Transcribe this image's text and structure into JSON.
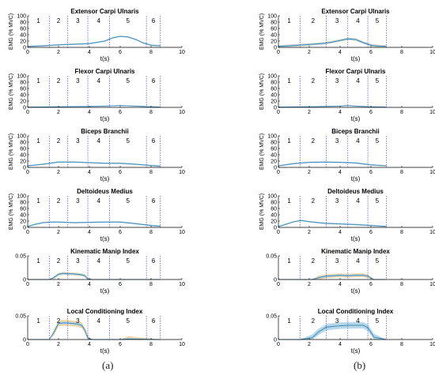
{
  "captions": [
    "(a)",
    "(b)"
  ],
  "colors": {
    "line_blue": "#3a8fc4",
    "band_blue": "#a9d6f2",
    "band_orange": "#f7c98c",
    "phase_line": "#5b5bd6",
    "axis": "#000000"
  },
  "chart_data": [
    {
      "type": "line",
      "panel": "a",
      "title": "Extensor Carpi Ulnaris",
      "ylabel": "EMG (% MVC)",
      "xlabel": "t(s)",
      "xlim": [
        0,
        10
      ],
      "ylim": [
        0,
        100
      ],
      "xticks": [
        "0",
        "2",
        "4",
        "6",
        "8",
        "10"
      ],
      "yticks": [
        "0",
        "20",
        "40",
        "60",
        "80",
        "100"
      ],
      "phase_boundaries": [
        1.4,
        2.6,
        3.9,
        5.3,
        7.7,
        8.6
      ],
      "phase_labels": [
        {
          "text": "1",
          "x": 0.7
        },
        {
          "text": "2",
          "x": 2.0
        },
        {
          "text": "3",
          "x": 3.25
        },
        {
          "text": "4",
          "x": 4.6
        },
        {
          "text": "5",
          "x": 6.5
        },
        {
          "text": "6",
          "x": 8.15
        }
      ],
      "x": [
        0,
        1,
        2,
        3,
        4,
        5,
        5.5,
        6,
        6.5,
        7,
        7.5,
        8,
        8.6
      ],
      "mean": [
        3,
        5,
        8,
        10,
        12,
        20,
        30,
        35,
        33,
        25,
        14,
        7,
        5
      ],
      "band_blue": 2,
      "band_orange": 2
    },
    {
      "type": "line",
      "panel": "a",
      "title": "Flexor Carpi Ulnaris",
      "ylabel": "EMG (% MVC)",
      "xlabel": "t(s)",
      "xlim": [
        0,
        10
      ],
      "ylim": [
        0,
        100
      ],
      "xticks": [
        "0",
        "2",
        "4",
        "6",
        "8",
        "10"
      ],
      "yticks": [
        "0",
        "20",
        "40",
        "60",
        "80",
        "100"
      ],
      "phase_boundaries": [
        1.4,
        2.6,
        3.9,
        5.3,
        7.7,
        8.6
      ],
      "phase_labels": [
        {
          "text": "1",
          "x": 0.7
        },
        {
          "text": "2",
          "x": 2.0
        },
        {
          "text": "3",
          "x": 3.25
        },
        {
          "text": "4",
          "x": 4.6
        },
        {
          "text": "5",
          "x": 6.5
        },
        {
          "text": "6",
          "x": 8.15
        }
      ],
      "x": [
        0,
        2,
        4,
        5,
        6,
        7,
        8,
        8.6
      ],
      "mean": [
        1,
        2,
        3,
        4,
        6,
        4,
        2,
        1
      ],
      "band_blue": 1,
      "band_orange": 1
    },
    {
      "type": "line",
      "panel": "a",
      "title": "Biceps Branchii",
      "ylabel": "EMG (% MVC)",
      "xlabel": "t(s)",
      "xlim": [
        0,
        10
      ],
      "ylim": [
        0,
        100
      ],
      "xticks": [
        "0",
        "2",
        "4",
        "6",
        "8",
        "10"
      ],
      "yticks": [
        "0",
        "20",
        "40",
        "60",
        "80",
        "100"
      ],
      "phase_boundaries": [
        1.4,
        2.6,
        3.9,
        5.3,
        7.7,
        8.6
      ],
      "phase_labels": [
        {
          "text": "1",
          "x": 0.7
        },
        {
          "text": "2",
          "x": 2.0
        },
        {
          "text": "3",
          "x": 3.25
        },
        {
          "text": "4",
          "x": 4.6
        },
        {
          "text": "5",
          "x": 6.5
        },
        {
          "text": "6",
          "x": 8.15
        }
      ],
      "x": [
        0,
        1,
        2,
        3,
        4,
        5,
        6,
        7,
        8,
        8.6
      ],
      "mean": [
        5,
        10,
        17,
        17,
        15,
        13,
        13,
        10,
        6,
        4
      ],
      "band_blue": 2,
      "band_orange": 2
    },
    {
      "type": "line",
      "panel": "a",
      "title": "Deltoideus Medius",
      "ylabel": "EMG (% MVC)",
      "xlabel": "t(s)",
      "xlim": [
        0,
        10
      ],
      "ylim": [
        0,
        100
      ],
      "xticks": [
        "0",
        "2",
        "4",
        "6",
        "8",
        "10"
      ],
      "yticks": [
        "0",
        "20",
        "40",
        "60",
        "80",
        "100"
      ],
      "phase_boundaries": [
        1.4,
        2.6,
        3.9,
        5.3,
        7.7,
        8.6
      ],
      "phase_labels": [
        {
          "text": "1",
          "x": 0.7
        },
        {
          "text": "2",
          "x": 2.0
        },
        {
          "text": "3",
          "x": 3.25
        },
        {
          "text": "4",
          "x": 4.6
        },
        {
          "text": "5",
          "x": 6.5
        },
        {
          "text": "6",
          "x": 8.15
        }
      ],
      "x": [
        0,
        0.5,
        1,
        1.5,
        2,
        3,
        4,
        5,
        6,
        7,
        8,
        8.6
      ],
      "mean": [
        3,
        10,
        15,
        17,
        17,
        15,
        16,
        17,
        17,
        12,
        6,
        4
      ],
      "band_blue": 2,
      "band_orange": 2
    },
    {
      "type": "line",
      "panel": "a",
      "title": "Kinematic Manip Index",
      "ylabel": "",
      "xlabel": "t(s)",
      "xlim": [
        0,
        10
      ],
      "ylim": [
        0,
        0.05
      ],
      "xticks": [
        "0",
        "2",
        "4",
        "6",
        "8",
        "10"
      ],
      "yticks": [
        "0",
        "0.05"
      ],
      "phase_boundaries": [
        1.4,
        2.6,
        3.9,
        5.3,
        7.7,
        8.6
      ],
      "phase_labels": [
        {
          "text": "1",
          "x": 0.7
        },
        {
          "text": "2",
          "x": 2.0
        },
        {
          "text": "3",
          "x": 3.25
        },
        {
          "text": "4",
          "x": 4.6
        },
        {
          "text": "5",
          "x": 6.5
        },
        {
          "text": "6",
          "x": 8.15
        }
      ],
      "x": [
        0,
        1.4,
        1.7,
        2.0,
        2.3,
        2.6,
        2.9,
        3.2,
        3.5,
        3.7,
        3.9,
        4.2,
        8.6
      ],
      "mean": [
        0,
        0,
        0.004,
        0.011,
        0.013,
        0.012,
        0.012,
        0.011,
        0.01,
        0.008,
        0.001,
        0,
        0
      ],
      "band_blue": 0.002,
      "band_orange": 0.003
    },
    {
      "type": "line",
      "panel": "a",
      "title": "Local Conditioning Index",
      "ylabel": "",
      "xlabel": "t(s)",
      "xlim": [
        0,
        10
      ],
      "ylim": [
        0,
        0.05
      ],
      "xticks": [
        "0",
        "2",
        "4",
        "6",
        "8",
        "10"
      ],
      "yticks": [
        "0",
        "0.05"
      ],
      "phase_boundaries": [
        1.4,
        2.6,
        3.9,
        5.3,
        7.7,
        8.6
      ],
      "phase_labels": [
        {
          "text": "1",
          "x": 0.7
        },
        {
          "text": "2",
          "x": 2.0
        },
        {
          "text": "3",
          "x": 3.25
        },
        {
          "text": "4",
          "x": 4.6
        },
        {
          "text": "5",
          "x": 6.5
        },
        {
          "text": "6",
          "x": 8.15
        }
      ],
      "x": [
        0,
        1.4,
        1.7,
        2.0,
        2.3,
        2.6,
        2.9,
        3.2,
        3.5,
        3.7,
        3.9,
        4.2,
        6.0,
        6.5,
        8.6
      ],
      "mean": [
        0,
        0,
        0.015,
        0.034,
        0.035,
        0.035,
        0.034,
        0.033,
        0.03,
        0.02,
        0.003,
        0,
        0,
        0.001,
        0
      ],
      "band_blue": 0.003,
      "band_orange": 0.006
    },
    {
      "type": "line",
      "panel": "b",
      "title": "Extensor Carpi Ulnaris",
      "ylabel": "EMG (% MVC)",
      "xlabel": "t(s)",
      "xlim": [
        0,
        10
      ],
      "ylim": [
        0,
        100
      ],
      "xticks": [
        "0",
        "2",
        "4",
        "6",
        "8",
        "10"
      ],
      "yticks": [
        "0",
        "20",
        "40",
        "60",
        "80",
        "100"
      ],
      "phase_boundaries": [
        1.4,
        3.1,
        4.5,
        5.8,
        7.0
      ],
      "phase_labels": [
        {
          "text": "1",
          "x": 0.7
        },
        {
          "text": "2",
          "x": 2.25
        },
        {
          "text": "3",
          "x": 3.8
        },
        {
          "text": "4",
          "x": 5.15
        },
        {
          "text": "5",
          "x": 6.4
        }
      ],
      "x": [
        0,
        1,
        2,
        3,
        3.5,
        4,
        4.5,
        5,
        5.5,
        6,
        6.5,
        7
      ],
      "mean": [
        3,
        6,
        9,
        13,
        17,
        22,
        27,
        25,
        15,
        7,
        4,
        3
      ],
      "band_blue": 3,
      "band_orange": 4
    },
    {
      "type": "line",
      "panel": "b",
      "title": "Flexor Carpi Ulnaris",
      "ylabel": "EMG (% MVC)",
      "xlabel": "t(s)",
      "xlim": [
        0,
        10
      ],
      "ylim": [
        0,
        100
      ],
      "xticks": [
        "0",
        "2",
        "4",
        "6",
        "8",
        "10"
      ],
      "yticks": [
        "0",
        "20",
        "40",
        "60",
        "80",
        "100"
      ],
      "phase_boundaries": [
        1.4,
        3.1,
        4.5,
        5.8,
        7.0
      ],
      "phase_labels": [
        {
          "text": "1",
          "x": 0.7
        },
        {
          "text": "2",
          "x": 2.25
        },
        {
          "text": "3",
          "x": 3.8
        },
        {
          "text": "4",
          "x": 5.15
        },
        {
          "text": "5",
          "x": 6.4
        }
      ],
      "x": [
        0,
        2,
        3,
        4,
        4.5,
        5,
        6,
        7
      ],
      "mean": [
        1,
        2,
        3,
        4,
        6,
        4,
        2,
        1
      ],
      "band_blue": 1,
      "band_orange": 1.5
    },
    {
      "type": "line",
      "panel": "b",
      "title": "Biceps Branchii",
      "ylabel": "EMG (% MVC)",
      "xlabel": "t(s)",
      "xlim": [
        0,
        10
      ],
      "ylim": [
        0,
        100
      ],
      "xticks": [
        "0",
        "2",
        "4",
        "6",
        "8",
        "10"
      ],
      "yticks": [
        "0",
        "20",
        "40",
        "60",
        "80",
        "100"
      ],
      "phase_boundaries": [
        1.4,
        3.1,
        4.5,
        5.8,
        7.0
      ],
      "phase_labels": [
        {
          "text": "1",
          "x": 0.7
        },
        {
          "text": "2",
          "x": 2.25
        },
        {
          "text": "3",
          "x": 3.8
        },
        {
          "text": "4",
          "x": 5.15
        },
        {
          "text": "5",
          "x": 6.4
        }
      ],
      "x": [
        0,
        1,
        2,
        3,
        4,
        5,
        6,
        7
      ],
      "mean": [
        5,
        12,
        16,
        17,
        16,
        14,
        8,
        5
      ],
      "band_blue": 2,
      "band_orange": 2
    },
    {
      "type": "line",
      "panel": "b",
      "title": "Deltoideus Medius",
      "ylabel": "EMG (% MVC)",
      "xlabel": "t(s)",
      "xlim": [
        0,
        10
      ],
      "ylim": [
        0,
        100
      ],
      "xticks": [
        "0",
        "2",
        "4",
        "6",
        "8",
        "10"
      ],
      "yticks": [
        "0",
        "20",
        "40",
        "60",
        "80",
        "100"
      ],
      "phase_boundaries": [
        1.4,
        3.1,
        4.5,
        5.8,
        7.0
      ],
      "phase_labels": [
        {
          "text": "1",
          "x": 0.7
        },
        {
          "text": "2",
          "x": 2.25
        },
        {
          "text": "3",
          "x": 3.8
        },
        {
          "text": "4",
          "x": 5.15
        },
        {
          "text": "5",
          "x": 6.4
        }
      ],
      "x": [
        0,
        0.5,
        1,
        1.5,
        2,
        3,
        4,
        5,
        6,
        7
      ],
      "mean": [
        3,
        10,
        18,
        22,
        18,
        13,
        11,
        9,
        6,
        3
      ],
      "band_blue": 2,
      "band_orange": 2
    },
    {
      "type": "line",
      "panel": "b",
      "title": "Kinematic Manip Index",
      "ylabel": "",
      "xlabel": "t(s)",
      "xlim": [
        0,
        10
      ],
      "ylim": [
        0,
        0.05
      ],
      "xticks": [
        "0",
        "2",
        "4",
        "6",
        "8",
        "10"
      ],
      "yticks": [
        "0",
        "0.05"
      ],
      "phase_boundaries": [
        1.4,
        3.1,
        4.5,
        5.8,
        7.0
      ],
      "phase_labels": [
        {
          "text": "1",
          "x": 0.7
        },
        {
          "text": "2",
          "x": 2.25
        },
        {
          "text": "3",
          "x": 3.8
        },
        {
          "text": "4",
          "x": 5.15
        },
        {
          "text": "5",
          "x": 6.4
        }
      ],
      "x": [
        0,
        1.4,
        2.2,
        2.6,
        3.1,
        3.6,
        4.0,
        4.5,
        5.0,
        5.5,
        5.8,
        6.2,
        7.0
      ],
      "mean": [
        0,
        0,
        0,
        0.004,
        0.007,
        0.008,
        0.009,
        0.008,
        0.009,
        0.009,
        0.007,
        0,
        0
      ],
      "band_blue": 0.002,
      "band_orange": 0.004
    },
    {
      "type": "line",
      "panel": "b",
      "title": "Local Conditioning Index",
      "ylabel": "",
      "xlabel": "t(s)",
      "xlim": [
        0,
        10
      ],
      "ylim": [
        0,
        0.05
      ],
      "xticks": [
        "0",
        "2",
        "4",
        "6",
        "8",
        "10"
      ],
      "yticks": [
        "0",
        "0.05"
      ],
      "phase_boundaries": [
        1.4,
        3.1,
        4.5,
        5.8,
        7.0
      ],
      "phase_labels": [
        {
          "text": "1",
          "x": 0.7
        },
        {
          "text": "2",
          "x": 2.25
        },
        {
          "text": "3",
          "x": 3.8
        },
        {
          "text": "4",
          "x": 5.15
        },
        {
          "text": "5",
          "x": 6.4
        }
      ],
      "x": [
        0,
        1.4,
        2.2,
        2.6,
        3.1,
        3.6,
        4.0,
        4.5,
        5.0,
        5.5,
        5.8,
        6.2,
        7.0
      ],
      "mean": [
        0,
        0,
        0.004,
        0.016,
        0.026,
        0.028,
        0.029,
        0.03,
        0.03,
        0.03,
        0.025,
        0.005,
        0
      ],
      "band_blue": 0.007,
      "band_orange": 0.005
    }
  ]
}
